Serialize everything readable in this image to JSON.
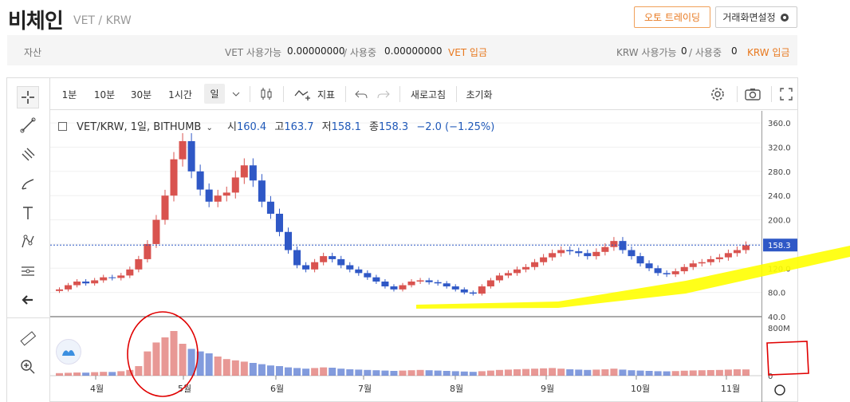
{
  "header": {
    "title": "비체인",
    "pair": "VET / KRW",
    "auto_trading": "오토 트레이딩",
    "layout_settings": "거래화면설정"
  },
  "assets": {
    "label": "자산",
    "vet_label": "VET 사용가능",
    "vet_available": "0.00000000",
    "vet_sep": "/ 사용중",
    "vet_in_use": "0.00000000",
    "vet_deposit": "VET 입금",
    "krw_label": "KRW 사용가능",
    "krw_available": "0",
    "krw_sep": "/ 사용중",
    "krw_in_use": "0",
    "krw_deposit": "KRW 입금"
  },
  "toolbar": {
    "intervals": [
      "1분",
      "10분",
      "30분",
      "1시간",
      "일"
    ],
    "indicator": "지표",
    "refresh": "새로고침",
    "reset": "초기화"
  },
  "legend": {
    "symbol": "VET/KRW, 1일, BITHUMB",
    "o_label": "시",
    "o": "160.4",
    "h_label": "고",
    "h": "163.7",
    "l_label": "저",
    "l": "158.1",
    "c_label": "종",
    "c": "158.3",
    "change": "−2.0 (−1.25%)"
  },
  "colors": {
    "up": "#d9534f",
    "down": "#2f58c6",
    "highlight": "#ffff00",
    "annotation": "#e00000"
  },
  "chart_data": {
    "type": "candlestick",
    "ylim": [
      40,
      380
    ],
    "yticks": [
      "40.0",
      "80.0",
      "120.0",
      "160.0",
      "200.0",
      "240.0",
      "280.0",
      "320.0",
      "360.0"
    ],
    "last_price": "158.3",
    "volume_ticks": [
      "0",
      "800M"
    ],
    "xticks": [
      "4월",
      "5월",
      "6월",
      "7월",
      "8월",
      "9월",
      "10월",
      "11월"
    ],
    "close_series": [
      85,
      92,
      98,
      95,
      100,
      105,
      104,
      108,
      118,
      135,
      160,
      200,
      240,
      300,
      330,
      280,
      250,
      230,
      240,
      245,
      270,
      290,
      265,
      230,
      210,
      180,
      150,
      125,
      118,
      130,
      140,
      135,
      125,
      118,
      112,
      105,
      98,
      90,
      85,
      92,
      98,
      100,
      97,
      95,
      90,
      85,
      80,
      78,
      90,
      100,
      108,
      112,
      118,
      122,
      130,
      138,
      145,
      150,
      148,
      145,
      140,
      147,
      155,
      165,
      150,
      140,
      128,
      120,
      112,
      110,
      115,
      122,
      128,
      130,
      135,
      138,
      145,
      150,
      158
    ],
    "volume_series": [
      40,
      45,
      50,
      48,
      55,
      60,
      58,
      70,
      90,
      150,
      380,
      520,
      600,
      700,
      500,
      420,
      380,
      350,
      300,
      260,
      240,
      220,
      200,
      180,
      160,
      150,
      130,
      120,
      110,
      120,
      130,
      125,
      110,
      100,
      95,
      90,
      85,
      80,
      75,
      80,
      85,
      90,
      85,
      80,
      75,
      70,
      65,
      60,
      70,
      80,
      90,
      95,
      100,
      105,
      110,
      115,
      120,
      110,
      100,
      95,
      90,
      95,
      100,
      110,
      95,
      85,
      80,
      75,
      70,
      68,
      72,
      78,
      82,
      85,
      88,
      90,
      95,
      100,
      98
    ]
  }
}
